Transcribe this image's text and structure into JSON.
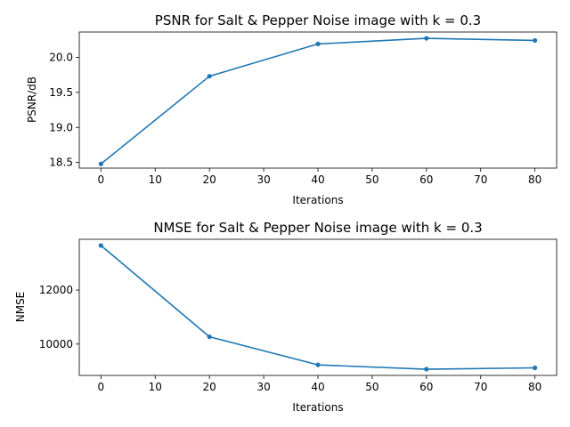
{
  "chart_data": [
    {
      "type": "line",
      "title": "PSNR for Salt & Pepper Noise image with k = 0.3",
      "xlabel": "Iterations",
      "ylabel": "PSNR/dB",
      "x": [
        0,
        20,
        40,
        60,
        80
      ],
      "series": [
        {
          "values": [
            18.48,
            19.73,
            20.19,
            20.27,
            20.24
          ],
          "color": "#1f77b4",
          "marker": "circle"
        }
      ],
      "xlim": [
        -4,
        84
      ],
      "ylim": [
        18.42,
        20.36
      ],
      "xticks": [
        0,
        10,
        20,
        30,
        40,
        50,
        60,
        70,
        80
      ],
      "xtick_labels": [
        "0",
        "10",
        "20",
        "30",
        "40",
        "50",
        "60",
        "70",
        "80"
      ],
      "yticks": [
        18.5,
        19.0,
        19.5,
        20.0
      ],
      "ytick_labels": [
        "18.5",
        "19.0",
        "19.5",
        "20.0"
      ],
      "grid": false,
      "legend": false
    },
    {
      "type": "line",
      "title": "NMSE for Salt & Pepper Noise image with k = 0.3",
      "xlabel": "Iterations",
      "ylabel": "NMSE",
      "x": [
        0,
        20,
        40,
        60,
        80
      ],
      "series": [
        {
          "values": [
            13650,
            10270,
            9230,
            9070,
            9120
          ],
          "color": "#1f77b4",
          "marker": "circle"
        }
      ],
      "xlim": [
        -4,
        84
      ],
      "ylim": [
        8840,
        13880
      ],
      "xticks": [
        0,
        10,
        20,
        30,
        40,
        50,
        60,
        70,
        80
      ],
      "xtick_labels": [
        "0",
        "10",
        "20",
        "30",
        "40",
        "50",
        "60",
        "70",
        "80"
      ],
      "yticks": [
        10000,
        12000
      ],
      "ytick_labels": [
        "10000",
        "12000"
      ],
      "grid": false,
      "legend": false
    }
  ]
}
